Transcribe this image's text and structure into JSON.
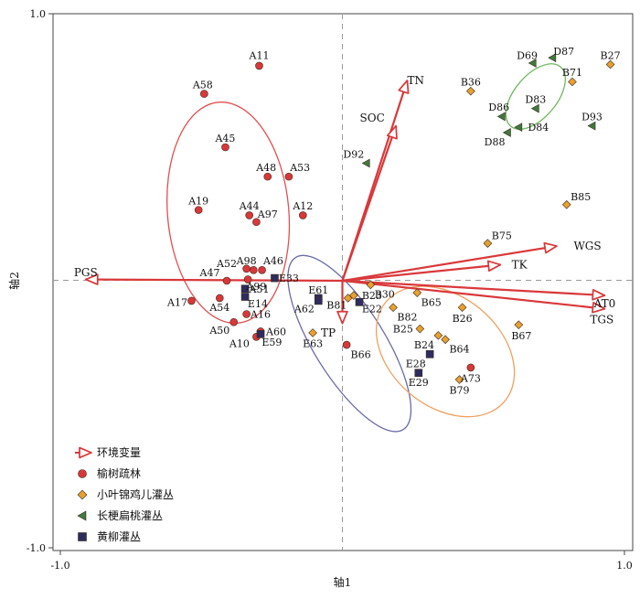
{
  "chart_data": {
    "type": "scatter",
    "xlabel": "轴1",
    "ylabel": "轴2",
    "xlim": [
      -1.0,
      1.0
    ],
    "ylim": [
      -1.0,
      1.0
    ],
    "xticks": [
      "-1.0",
      "1.0"
    ],
    "yticks": [
      "1.0",
      "-1.0"
    ],
    "reference_lines": {
      "x": 0,
      "y": 0,
      "style": "dashed"
    },
    "legend_position": "bottom-left",
    "colors": {
      "env": "#d9383a",
      "groupA": "#d9383a",
      "groupB": "#e8a030",
      "groupD": "#3f7a3f",
      "groupE": "#2e2c5e",
      "ellipseA": "#e05050",
      "ellipseB": "#f0a060",
      "ellipseD": "#6cb85c",
      "ellipseE": "#6a6aa8"
    },
    "legend": [
      {
        "key": "env",
        "label": "环境变量",
        "marker": "arrow"
      },
      {
        "key": "A",
        "label": "榆树疏林",
        "marker": "circle"
      },
      {
        "key": "B",
        "label": "小叶锦鸡儿灌丛",
        "marker": "diamond"
      },
      {
        "key": "D",
        "label": "长梗扁桃灌丛",
        "marker": "triangle"
      },
      {
        "key": "E",
        "label": "黄柳灌丛",
        "marker": "square"
      }
    ],
    "env_vectors": [
      {
        "name": "TN",
        "x": 0.23,
        "y": 0.75,
        "label_x": 0.26,
        "label_y": 0.75,
        "anchor": "middle"
      },
      {
        "name": "SOC",
        "x": 0.19,
        "y": 0.58,
        "label_x": 0.15,
        "label_y": 0.61,
        "anchor": "end"
      },
      {
        "name": "WGS",
        "x": 0.76,
        "y": 0.13,
        "label_x": 0.82,
        "label_y": 0.13,
        "anchor": "start"
      },
      {
        "name": "TK",
        "x": 0.56,
        "y": 0.06,
        "label_x": 0.6,
        "label_y": 0.06,
        "anchor": "start"
      },
      {
        "name": "AT0",
        "x": 0.93,
        "y": -0.055,
        "label_x": 0.93,
        "label_y": -0.085,
        "anchor": "middle"
      },
      {
        "name": "TGS",
        "x": 0.93,
        "y": -0.105,
        "label_x": 0.92,
        "label_y": -0.145,
        "anchor": "middle"
      },
      {
        "name": "TP",
        "x": 0.0,
        "y": -0.16,
        "label_x": -0.05,
        "label_y": -0.195,
        "anchor": "middle"
      },
      {
        "name": "PGS",
        "x": -0.91,
        "y": 0.005,
        "label_x": -0.91,
        "label_y": 0.03,
        "anchor": "middle"
      }
    ],
    "ellipses": [
      {
        "group": "A",
        "cx": -0.405,
        "cy": 0.255,
        "rx": 0.215,
        "ry": 0.415,
        "angle": -5
      },
      {
        "group": "E",
        "cx": 0.025,
        "cy": -0.235,
        "rx": 0.125,
        "ry": 0.38,
        "angle": -32
      },
      {
        "group": "B",
        "cx": 0.365,
        "cy": -0.265,
        "rx": 0.195,
        "ry": 0.29,
        "angle": -50
      },
      {
        "group": "D",
        "cx": 0.685,
        "cy": 0.69,
        "rx": 0.075,
        "ry": 0.145,
        "angle": 40
      }
    ],
    "series": [
      {
        "key": "A",
        "name": "榆树疏林",
        "marker": "circle",
        "points": [
          {
            "label": "A11",
            "x": -0.295,
            "y": 0.805,
            "lx": 0.0,
            "ly": 0.04,
            "anchor": "middle"
          },
          {
            "label": "A58",
            "x": -0.49,
            "y": 0.7,
            "lx": -0.005,
            "ly": 0.035,
            "anchor": "middle"
          },
          {
            "label": "A45",
            "x": -0.415,
            "y": 0.5,
            "lx": 0.0,
            "ly": 0.035,
            "anchor": "middle"
          },
          {
            "label": "A48",
            "x": -0.265,
            "y": 0.39,
            "lx": -0.005,
            "ly": 0.035,
            "anchor": "middle"
          },
          {
            "label": "A53",
            "x": -0.19,
            "y": 0.39,
            "lx": 0.04,
            "ly": 0.035,
            "anchor": "middle"
          },
          {
            "label": "A19",
            "x": -0.51,
            "y": 0.265,
            "lx": 0.0,
            "ly": 0.035,
            "anchor": "middle"
          },
          {
            "label": "A44",
            "x": -0.33,
            "y": 0.245,
            "lx": 0.0,
            "ly": 0.035,
            "anchor": "middle"
          },
          {
            "label": "A97",
            "x": -0.305,
            "y": 0.22,
            "lx": 0.04,
            "ly": 0.03,
            "anchor": "middle"
          },
          {
            "label": "A12",
            "x": -0.14,
            "y": 0.245,
            "lx": 0.0,
            "ly": 0.035,
            "anchor": "middle"
          },
          {
            "label": "A52",
            "x": -0.34,
            "y": 0.045,
            "lx": -0.07,
            "ly": 0.02,
            "anchor": "middle"
          },
          {
            "label": "A98",
            "x": -0.315,
            "y": 0.04,
            "lx": -0.025,
            "ly": 0.035,
            "anchor": "middle"
          },
          {
            "label": "A46",
            "x": -0.285,
            "y": 0.04,
            "lx": 0.04,
            "ly": 0.035,
            "anchor": "middle"
          },
          {
            "label": "A47",
            "x": -0.41,
            "y": 0.0,
            "lx": -0.06,
            "ly": 0.03,
            "anchor": "middle"
          },
          {
            "label": "A99",
            "x": -0.335,
            "y": 0.005,
            "lx": 0.03,
            "ly": -0.025,
            "anchor": "middle"
          },
          {
            "label": "A17",
            "x": -0.535,
            "y": -0.075,
            "lx": -0.05,
            "ly": -0.005,
            "anchor": "middle"
          },
          {
            "label": "A54",
            "x": -0.435,
            "y": -0.065,
            "lx": 0.0,
            "ly": -0.035,
            "anchor": "middle"
          },
          {
            "label": "A16",
            "x": -0.34,
            "y": -0.125,
            "lx": 0.05,
            "ly": 0.0,
            "anchor": "middle"
          },
          {
            "label": "A50",
            "x": -0.385,
            "y": -0.155,
            "lx": -0.05,
            "ly": -0.03,
            "anchor": "middle"
          },
          {
            "label": "A60",
            "x": -0.29,
            "y": -0.19,
            "lx": 0.055,
            "ly": 0.0,
            "anchor": "middle"
          },
          {
            "label": "A10",
            "x": -0.305,
            "y": -0.21,
            "lx": -0.06,
            "ly": -0.025,
            "anchor": "middle"
          },
          {
            "label": "A73",
            "x": 0.455,
            "y": -0.325,
            "lx": 0.0,
            "ly": -0.04,
            "anchor": "middle"
          },
          {
            "label": "B66",
            "x": 0.015,
            "y": -0.24,
            "lx": 0.05,
            "ly": -0.035,
            "anchor": "middle"
          }
        ]
      },
      {
        "key": "B",
        "name": "小叶锦鸡儿灌丛",
        "marker": "diamond",
        "points": [
          {
            "label": "B36",
            "x": 0.455,
            "y": 0.71,
            "lx": 0.0,
            "ly": 0.035,
            "anchor": "middle"
          },
          {
            "label": "B27",
            "x": 0.95,
            "y": 0.81,
            "lx": 0.0,
            "ly": 0.035,
            "anchor": "middle"
          },
          {
            "label": "B71",
            "x": 0.815,
            "y": 0.745,
            "lx": 0.0,
            "ly": 0.035,
            "anchor": "middle"
          },
          {
            "label": "B85",
            "x": 0.795,
            "y": 0.285,
            "lx": 0.05,
            "ly": 0.03,
            "anchor": "middle"
          },
          {
            "label": "B75",
            "x": 0.515,
            "y": 0.14,
            "lx": 0.05,
            "ly": 0.03,
            "anchor": "middle"
          },
          {
            "label": "B30",
            "x": 0.1,
            "y": -0.015,
            "lx": 0.05,
            "ly": -0.035,
            "anchor": "middle"
          },
          {
            "label": "B65",
            "x": 0.265,
            "y": -0.045,
            "lx": 0.05,
            "ly": -0.035,
            "anchor": "middle"
          },
          {
            "label": "B23",
            "x": 0.04,
            "y": -0.055,
            "lx": 0.065,
            "ly": 0.0,
            "anchor": "middle"
          },
          {
            "label": "B81",
            "x": 0.02,
            "y": -0.065,
            "lx": -0.04,
            "ly": -0.025,
            "anchor": "middle"
          },
          {
            "label": "B82",
            "x": 0.18,
            "y": -0.1,
            "lx": 0.05,
            "ly": -0.035,
            "anchor": "middle"
          },
          {
            "label": "B26",
            "x": 0.425,
            "y": -0.1,
            "lx": 0.0,
            "ly": -0.04,
            "anchor": "middle"
          },
          {
            "label": "B67",
            "x": 0.625,
            "y": -0.165,
            "lx": 0.01,
            "ly": -0.04,
            "anchor": "middle"
          },
          {
            "label": "B25",
            "x": 0.275,
            "y": -0.18,
            "lx": -0.06,
            "ly": 0.0,
            "anchor": "middle"
          },
          {
            "label": "B24",
            "x": 0.34,
            "y": -0.205,
            "lx": -0.05,
            "ly": -0.035,
            "anchor": "middle"
          },
          {
            "label": "B64",
            "x": 0.365,
            "y": -0.22,
            "lx": 0.05,
            "ly": -0.035,
            "anchor": "middle"
          },
          {
            "label": "B79",
            "x": 0.415,
            "y": -0.37,
            "lx": 0.0,
            "ly": -0.04,
            "anchor": "middle"
          },
          {
            "label": "E63",
            "x": -0.105,
            "y": -0.195,
            "lx": 0.0,
            "ly": -0.04,
            "anchor": "middle"
          }
        ]
      },
      {
        "key": "D",
        "name": "长梗扁桃灌丛",
        "marker": "triangle",
        "points": [
          {
            "label": "D87",
            "x": 0.745,
            "y": 0.835,
            "lx": 0.04,
            "ly": 0.025,
            "anchor": "middle"
          },
          {
            "label": "D69",
            "x": 0.675,
            "y": 0.815,
            "lx": -0.02,
            "ly": 0.03,
            "anchor": "middle"
          },
          {
            "label": "D83",
            "x": 0.685,
            "y": 0.645,
            "lx": 0.0,
            "ly": 0.035,
            "anchor": "middle"
          },
          {
            "label": "D86",
            "x": 0.565,
            "y": 0.615,
            "lx": -0.01,
            "ly": 0.035,
            "anchor": "middle"
          },
          {
            "label": "D93",
            "x": 0.885,
            "y": 0.58,
            "lx": 0.0,
            "ly": 0.035,
            "anchor": "middle"
          },
          {
            "label": "D84",
            "x": 0.625,
            "y": 0.575,
            "lx": 0.07,
            "ly": 0.0,
            "anchor": "middle"
          },
          {
            "label": "D88",
            "x": 0.585,
            "y": 0.555,
            "lx": -0.045,
            "ly": -0.035,
            "anchor": "middle"
          },
          {
            "label": "D92",
            "x": 0.085,
            "y": 0.44,
            "lx": -0.045,
            "ly": 0.035,
            "anchor": "middle"
          }
        ]
      },
      {
        "key": "E",
        "name": "黄柳灌丛",
        "marker": "square",
        "points": [
          {
            "label": "E33",
            "x": -0.24,
            "y": 0.01,
            "lx": 0.05,
            "ly": 0.0,
            "anchor": "middle"
          },
          {
            "label": "A51",
            "x": -0.345,
            "y": -0.03,
            "lx": 0.05,
            "ly": 0.0,
            "anchor": "middle"
          },
          {
            "label": "E14",
            "x": -0.345,
            "y": -0.06,
            "lx": 0.045,
            "ly": -0.025,
            "anchor": "middle"
          },
          {
            "label": "E61",
            "x": -0.085,
            "y": -0.065,
            "lx": 0.0,
            "ly": 0.03,
            "anchor": "middle"
          },
          {
            "label": "A62",
            "x": -0.085,
            "y": -0.075,
            "lx": -0.05,
            "ly": -0.03,
            "anchor": "middle"
          },
          {
            "label": "E22",
            "x": 0.06,
            "y": -0.08,
            "lx": 0.045,
            "ly": -0.025,
            "anchor": "middle"
          },
          {
            "label": "E59",
            "x": -0.29,
            "y": -0.2,
            "lx": 0.04,
            "ly": -0.03,
            "anchor": "middle"
          },
          {
            "label": "E28",
            "x": 0.31,
            "y": -0.275,
            "lx": -0.05,
            "ly": -0.035,
            "anchor": "middle"
          },
          {
            "label": "E29",
            "x": 0.27,
            "y": -0.345,
            "lx": 0.0,
            "ly": -0.035,
            "anchor": "middle"
          }
        ]
      }
    ]
  }
}
